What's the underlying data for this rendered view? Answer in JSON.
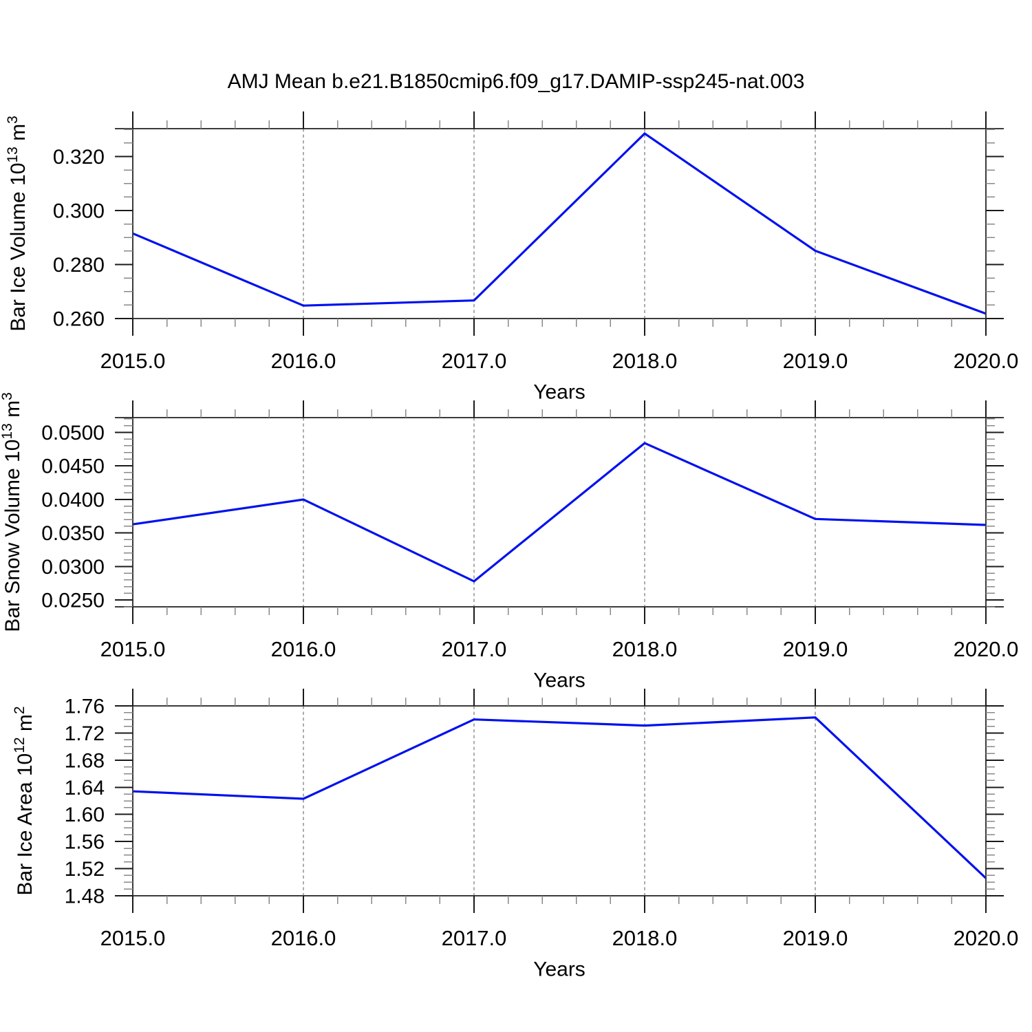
{
  "title": "AMJ Mean b.e21.B1850cmip6.f09_g17.DAMIP-ssp245-nat.003",
  "x_axis": {
    "label": "Years",
    "tick_labels": [
      "2015.0",
      "2016.0",
      "2017.0",
      "2018.0",
      "2019.0",
      "2020.0"
    ],
    "tick_values": [
      2015,
      2016,
      2017,
      2018,
      2019,
      2020
    ],
    "min": 2015,
    "max": 2020,
    "minor_step": 0.2,
    "grid_years": [
      2016,
      2017,
      2018,
      2019
    ]
  },
  "colors": {
    "line": "#0011ee",
    "grid": "#888888",
    "axis": "#3a3a3a",
    "tick_major": "#1a1a1a",
    "tick_minor": "#888888",
    "text": "#000000",
    "background": "#ffffff"
  },
  "chart_data": [
    {
      "type": "line",
      "ylabel_parts": [
        {
          "text": "Bar Ice Volume 10",
          "sup": false
        },
        {
          "text": "13",
          "sup": true
        },
        {
          "text": " m",
          "sup": false
        },
        {
          "text": "3",
          "sup": true
        }
      ],
      "x": [
        2015,
        2016,
        2017,
        2018,
        2019,
        2020
      ],
      "values": [
        0.2915,
        0.2648,
        0.2667,
        0.3285,
        0.2851,
        0.2618
      ],
      "ylim": [
        0.26,
        0.3303
      ],
      "ytick_values": [
        0.26,
        0.28,
        0.3,
        0.32
      ],
      "ytick_labels": [
        "0.260",
        "0.280",
        "0.300",
        "0.320"
      ],
      "yminor_step": 0.005,
      "xlabel": "Years",
      "legend": "none",
      "grid": "vertical-dashed"
    },
    {
      "type": "line",
      "ylabel_parts": [
        {
          "text": "Bar Snow Volume 10",
          "sup": false
        },
        {
          "text": "13",
          "sup": true
        },
        {
          "text": " m",
          "sup": false
        },
        {
          "text": "3",
          "sup": true
        }
      ],
      "x": [
        2015,
        2016,
        2017,
        2018,
        2019,
        2020
      ],
      "values": [
        0.0363,
        0.04,
        0.0278,
        0.0484,
        0.0371,
        0.0362
      ],
      "ylim": [
        0.024,
        0.0522
      ],
      "ytick_values": [
        0.025,
        0.03,
        0.035,
        0.04,
        0.045,
        0.05
      ],
      "ytick_labels": [
        "0.0250",
        "0.0300",
        "0.0350",
        "0.0400",
        "0.0450",
        "0.0500"
      ],
      "yminor_step": 0.001,
      "xlabel": "Years",
      "legend": "none",
      "grid": "vertical-dashed"
    },
    {
      "type": "line",
      "ylabel_parts": [
        {
          "text": "Bar Ice Area 10",
          "sup": false
        },
        {
          "text": "12",
          "sup": true
        },
        {
          "text": " m",
          "sup": false
        },
        {
          "text": "2",
          "sup": true
        }
      ],
      "x": [
        2015,
        2016,
        2017,
        2018,
        2019,
        2020
      ],
      "values": [
        1.634,
        1.623,
        1.74,
        1.731,
        1.743,
        1.506
      ],
      "ylim": [
        1.48,
        1.76
      ],
      "ytick_values": [
        1.48,
        1.52,
        1.56,
        1.6,
        1.64,
        1.68,
        1.72,
        1.76
      ],
      "ytick_labels": [
        "1.48",
        "1.52",
        "1.56",
        "1.60",
        "1.64",
        "1.68",
        "1.72",
        "1.76"
      ],
      "yminor_step": 0.01,
      "xlabel": "Years",
      "legend": "none",
      "grid": "vertical-dashed"
    }
  ]
}
